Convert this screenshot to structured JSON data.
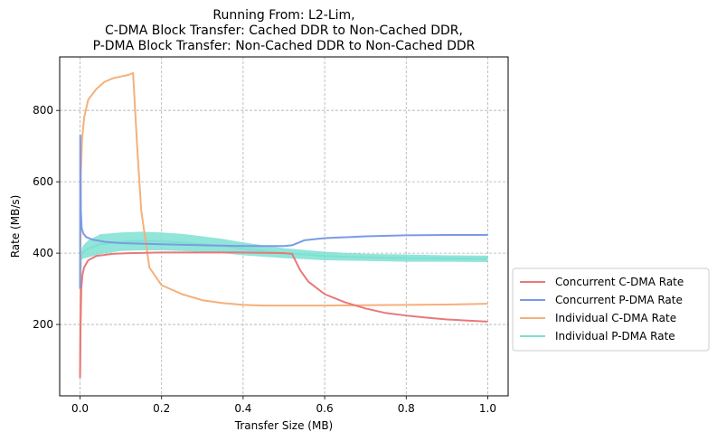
{
  "chart_data": {
    "type": "line",
    "title_lines": [
      "Running From: L2-Lim,",
      "C-DMA Block Transfer: Cached DDR to Non-Cached DDR,",
      "P-DMA Block Transfer: Non-Cached DDR to Non-Cached DDR"
    ],
    "xlabel": "Transfer Size (MB)",
    "ylabel": "Rate (MB/s)",
    "xlim": [
      -0.05,
      1.05
    ],
    "ylim": [
      0,
      950
    ],
    "xticks": [
      0.0,
      0.2,
      0.4,
      0.6,
      0.8,
      1.0
    ],
    "xtick_labels": [
      "0.0",
      "0.2",
      "0.4",
      "0.6",
      "0.8",
      "1.0"
    ],
    "yticks": [
      200,
      400,
      600,
      800
    ],
    "ytick_labels": [
      "200",
      "400",
      "600",
      "800"
    ],
    "grid": true,
    "legend_position": "outside-right-bottom",
    "series": [
      {
        "name": "Concurrent C-DMA Rate",
        "color": "#e8787a",
        "x": [
          0.0,
          0.001,
          0.003,
          0.006,
          0.01,
          0.02,
          0.04,
          0.08,
          0.12,
          0.2,
          0.3,
          0.4,
          0.5,
          0.52,
          0.54,
          0.56,
          0.6,
          0.65,
          0.7,
          0.75,
          0.8,
          0.85,
          0.9,
          0.95,
          1.0
        ],
        "y": [
          50,
          170,
          300,
          340,
          360,
          380,
          392,
          398,
          400,
          402,
          402,
          402,
          400,
          398,
          352,
          320,
          285,
          262,
          245,
          232,
          225,
          219,
          214,
          211,
          208
        ]
      },
      {
        "name": "Concurrent P-DMA Rate",
        "color": "#7b9be6",
        "x": [
          0.0,
          0.0005,
          0.001,
          0.002,
          0.004,
          0.008,
          0.015,
          0.03,
          0.06,
          0.1,
          0.2,
          0.3,
          0.4,
          0.5,
          0.52,
          0.55,
          0.6,
          0.7,
          0.8,
          0.9,
          1.0
        ],
        "y": [
          300,
          730,
          620,
          520,
          470,
          455,
          445,
          438,
          432,
          428,
          425,
          422,
          420,
          420,
          422,
          436,
          442,
          447,
          450,
          451,
          451
        ]
      },
      {
        "name": "Individual C-DMA Rate",
        "color": "#f5b07a",
        "x": [
          0.0,
          0.002,
          0.005,
          0.01,
          0.02,
          0.04,
          0.06,
          0.08,
          0.1,
          0.12,
          0.13,
          0.14,
          0.15,
          0.17,
          0.2,
          0.25,
          0.3,
          0.35,
          0.4,
          0.45,
          0.5,
          0.6,
          0.7,
          0.8,
          0.9,
          1.0
        ],
        "y": [
          50,
          620,
          720,
          780,
          830,
          860,
          880,
          890,
          895,
          900,
          905,
          700,
          520,
          360,
          310,
          285,
          268,
          260,
          255,
          253,
          253,
          253,
          254,
          255,
          256,
          258
        ]
      },
      {
        "name": "Individual P-DMA Rate",
        "color": "#7ee0d2",
        "x": [
          0.0,
          0.002,
          0.005,
          0.01,
          0.02,
          0.05,
          0.1,
          0.15,
          0.2,
          0.25,
          0.3,
          0.35,
          0.4,
          0.5,
          0.6,
          0.7,
          0.8,
          0.9,
          1.0
        ],
        "y": [
          100,
          380,
          400,
          405,
          412,
          425,
          432,
          434,
          433,
          430,
          425,
          420,
          412,
          400,
          392,
          388,
          386,
          385,
          384
        ],
        "band": [
          10,
          12,
          16,
          20,
          24,
          28,
          26,
          26,
          25,
          24,
          22,
          20,
          18,
          14,
          12,
          10,
          10,
          9,
          9
        ]
      }
    ]
  }
}
